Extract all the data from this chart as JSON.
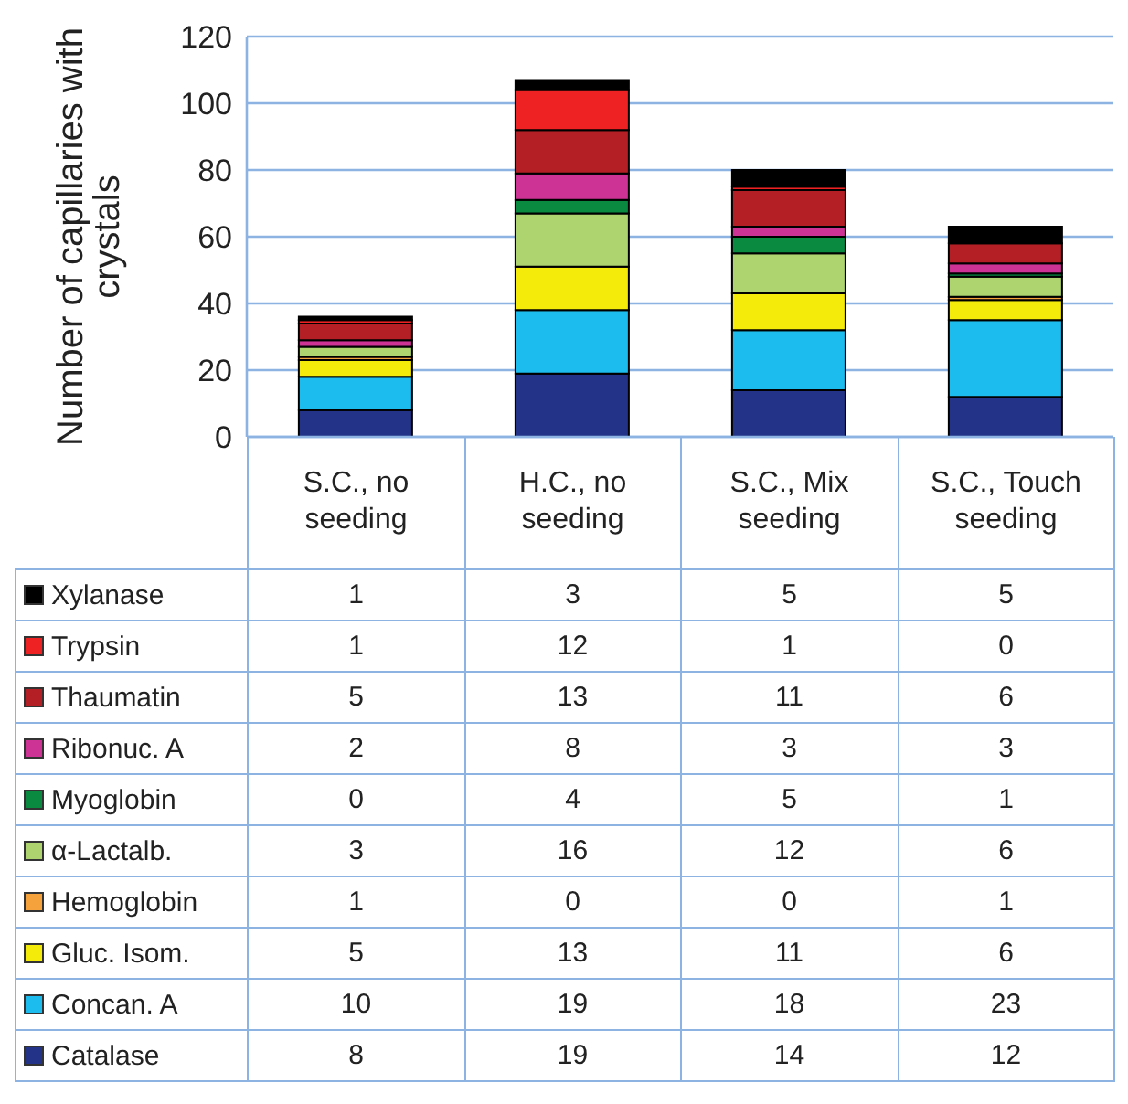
{
  "chart_data": {
    "type": "bar",
    "stacked": true,
    "ylabel": "Number of capillaries with crystals",
    "categories": [
      "S.C., no seeding",
      "H.C., no seeding",
      "S.C., Mix seeding",
      "S.C., Touch seeding"
    ],
    "series": [
      {
        "name": "Catalase",
        "color": "#233488",
        "values": [
          8,
          19,
          14,
          12
        ],
        "value_labels": [
          "8",
          "19",
          "14",
          "12"
        ]
      },
      {
        "name": "Concan. A",
        "color": "#1cbcee",
        "values": [
          10,
          19,
          18,
          23
        ],
        "value_labels": [
          "10",
          "19",
          "18",
          "23"
        ]
      },
      {
        "name": "Gluc. Isom.",
        "color": "#f5eb0a",
        "values": [
          5,
          13,
          11,
          6
        ],
        "value_labels": [
          "5",
          "13",
          "11",
          "6"
        ]
      },
      {
        "name": "Hemoglobin",
        "color": "#f6a23c",
        "values": [
          1,
          0,
          0,
          1
        ],
        "value_labels": [
          "1",
          "0",
          "0",
          "1"
        ]
      },
      {
        "name": "α-Lactalb.",
        "color": "#add46e",
        "values": [
          3,
          16,
          12,
          6
        ],
        "value_labels": [
          "3",
          "16",
          "12",
          "6"
        ]
      },
      {
        "name": "Myoglobin",
        "color": "#0a8a40",
        "values": [
          0,
          4,
          5,
          1
        ],
        "value_labels": [
          "0",
          "4",
          "5",
          "1"
        ]
      },
      {
        "name": "Ribonuc. A",
        "color": "#cc3395",
        "values": [
          2,
          8,
          3,
          3
        ],
        "value_labels": [
          "2",
          "8",
          "3",
          "3"
        ]
      },
      {
        "name": "Thaumatin",
        "color": "#b31f24",
        "values": [
          5,
          13,
          11,
          6
        ],
        "value_labels": [
          "5",
          "13",
          "11",
          "6"
        ]
      },
      {
        "name": "Trypsin",
        "color": "#ee2222",
        "values": [
          1,
          12,
          1,
          0
        ],
        "value_labels": [
          "1",
          "12",
          "1",
          "0"
        ]
      },
      {
        "name": "Xylanase",
        "color": "#000000",
        "values": [
          1,
          3,
          5,
          5
        ],
        "value_labels": [
          "1",
          "3",
          "5",
          "5"
        ]
      }
    ],
    "ylim": [
      0,
      120
    ],
    "yticks": [
      0,
      20,
      40,
      60,
      80,
      100,
      120
    ],
    "grid": "y",
    "legend": "bottom"
  }
}
